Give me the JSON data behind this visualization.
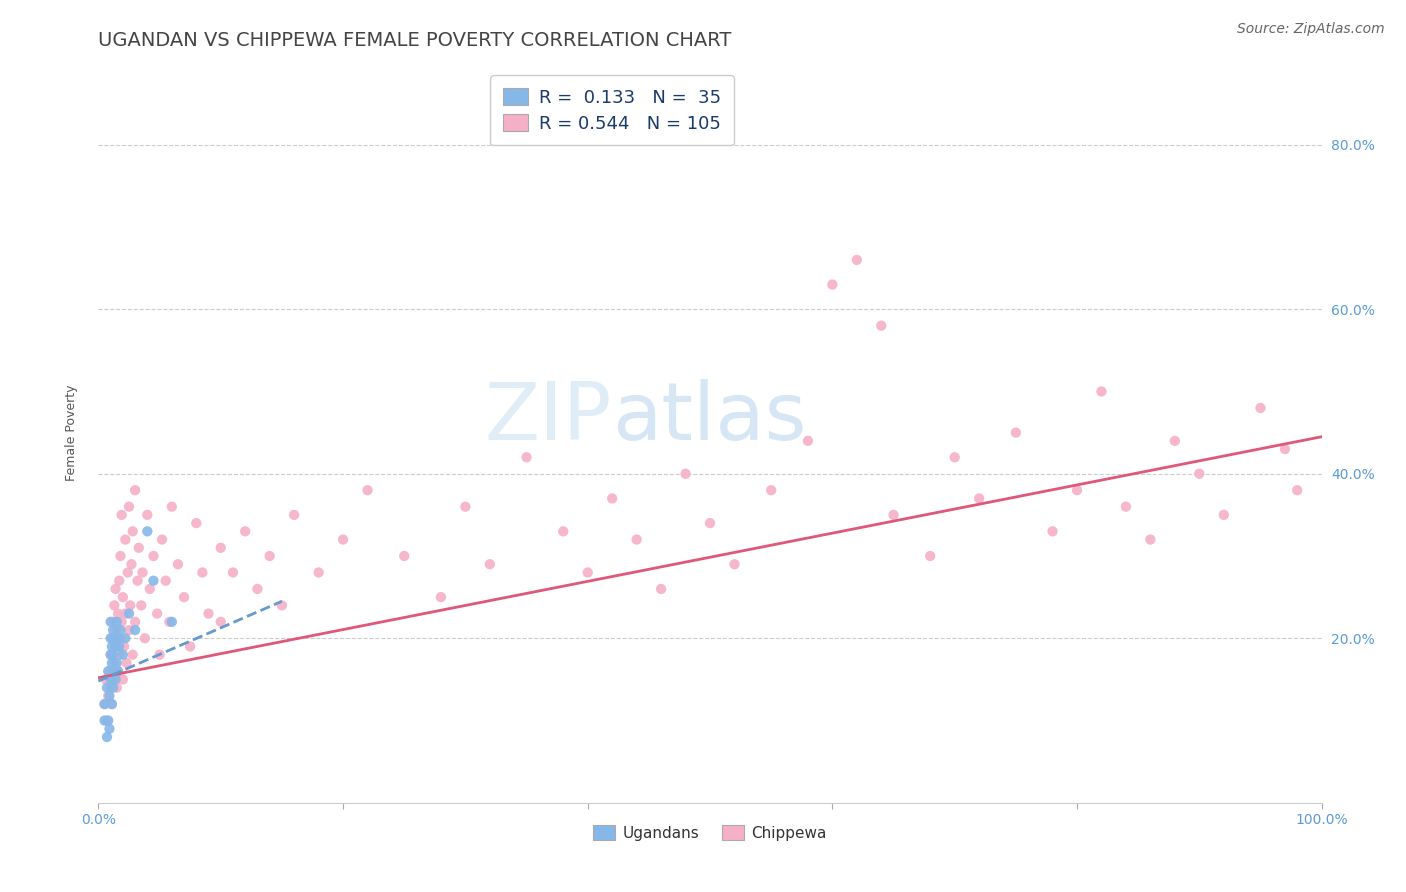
{
  "title": "UGANDAN VS CHIPPEWA FEMALE POVERTY CORRELATION CHART",
  "source": "Source: ZipAtlas.com",
  "ylabel": "Female Poverty",
  "xlim": [
    0,
    1
  ],
  "ylim": [
    0,
    0.9
  ],
  "xticks": [
    0.0,
    0.2,
    0.4,
    0.6,
    0.8,
    1.0
  ],
  "xtick_labels": [
    "0.0%",
    "",
    "",
    "",
    "",
    "100.0%"
  ],
  "ytick_vals_right": [
    0.2,
    0.4,
    0.6,
    0.8
  ],
  "ytick_labels_right": [
    "20.0%",
    "40.0%",
    "60.0%",
    "80.0%"
  ],
  "ugandan_color": "#85b8e8",
  "chippewa_color": "#f5b0c8",
  "ugandan_line_color": "#6699cc",
  "chippewa_line_color": "#e05878",
  "title_color": "#444444",
  "title_fontsize": 14,
  "source_fontsize": 10,
  "source_color": "#666666",
  "legend_label_ugandan": "Ugandans",
  "legend_label_chippewa": "Chippewa",
  "R_ugandan": 0.133,
  "N_ugandan": 35,
  "R_chippewa": 0.544,
  "N_chippewa": 105,
  "watermark_ZIP": "ZIP",
  "watermark_atlas": "atlas",
  "background_color": "#ffffff",
  "grid_color": "#cccccc",
  "ugandan_scatter": [
    [
      0.005,
      0.1
    ],
    [
      0.005,
      0.12
    ],
    [
      0.007,
      0.08
    ],
    [
      0.007,
      0.14
    ],
    [
      0.008,
      0.1
    ],
    [
      0.008,
      0.16
    ],
    [
      0.009,
      0.09
    ],
    [
      0.009,
      0.13
    ],
    [
      0.01,
      0.15
    ],
    [
      0.01,
      0.18
    ],
    [
      0.01,
      0.2
    ],
    [
      0.01,
      0.22
    ],
    [
      0.011,
      0.12
    ],
    [
      0.011,
      0.17
    ],
    [
      0.011,
      0.19
    ],
    [
      0.012,
      0.14
    ],
    [
      0.012,
      0.18
    ],
    [
      0.012,
      0.21
    ],
    [
      0.013,
      0.16
    ],
    [
      0.013,
      0.2
    ],
    [
      0.014,
      0.15
    ],
    [
      0.014,
      0.19
    ],
    [
      0.015,
      0.17
    ],
    [
      0.015,
      0.22
    ],
    [
      0.016,
      0.16
    ],
    [
      0.016,
      0.2
    ],
    [
      0.017,
      0.19
    ],
    [
      0.018,
      0.21
    ],
    [
      0.02,
      0.18
    ],
    [
      0.022,
      0.2
    ],
    [
      0.025,
      0.23
    ],
    [
      0.03,
      0.21
    ],
    [
      0.04,
      0.33
    ],
    [
      0.045,
      0.27
    ],
    [
      0.06,
      0.22
    ]
  ],
  "chippewa_scatter": [
    [
      0.005,
      0.12
    ],
    [
      0.006,
      0.15
    ],
    [
      0.007,
      0.1
    ],
    [
      0.008,
      0.13
    ],
    [
      0.009,
      0.16
    ],
    [
      0.01,
      0.14
    ],
    [
      0.01,
      0.18
    ],
    [
      0.011,
      0.12
    ],
    [
      0.011,
      0.2
    ],
    [
      0.012,
      0.15
    ],
    [
      0.012,
      0.22
    ],
    [
      0.013,
      0.17
    ],
    [
      0.013,
      0.24
    ],
    [
      0.014,
      0.19
    ],
    [
      0.014,
      0.26
    ],
    [
      0.015,
      0.14
    ],
    [
      0.015,
      0.21
    ],
    [
      0.016,
      0.16
    ],
    [
      0.016,
      0.23
    ],
    [
      0.017,
      0.18
    ],
    [
      0.017,
      0.27
    ],
    [
      0.018,
      0.2
    ],
    [
      0.018,
      0.3
    ],
    [
      0.019,
      0.22
    ],
    [
      0.019,
      0.35
    ],
    [
      0.02,
      0.15
    ],
    [
      0.02,
      0.25
    ],
    [
      0.021,
      0.19
    ],
    [
      0.022,
      0.23
    ],
    [
      0.022,
      0.32
    ],
    [
      0.023,
      0.17
    ],
    [
      0.024,
      0.28
    ],
    [
      0.025,
      0.21
    ],
    [
      0.025,
      0.36
    ],
    [
      0.026,
      0.24
    ],
    [
      0.027,
      0.29
    ],
    [
      0.028,
      0.18
    ],
    [
      0.028,
      0.33
    ],
    [
      0.03,
      0.22
    ],
    [
      0.03,
      0.38
    ],
    [
      0.032,
      0.27
    ],
    [
      0.033,
      0.31
    ],
    [
      0.035,
      0.24
    ],
    [
      0.036,
      0.28
    ],
    [
      0.038,
      0.2
    ],
    [
      0.04,
      0.35
    ],
    [
      0.042,
      0.26
    ],
    [
      0.045,
      0.3
    ],
    [
      0.048,
      0.23
    ],
    [
      0.05,
      0.18
    ],
    [
      0.052,
      0.32
    ],
    [
      0.055,
      0.27
    ],
    [
      0.058,
      0.22
    ],
    [
      0.06,
      0.36
    ],
    [
      0.065,
      0.29
    ],
    [
      0.07,
      0.25
    ],
    [
      0.075,
      0.19
    ],
    [
      0.08,
      0.34
    ],
    [
      0.085,
      0.28
    ],
    [
      0.09,
      0.23
    ],
    [
      0.1,
      0.31
    ],
    [
      0.1,
      0.22
    ],
    [
      0.11,
      0.28
    ],
    [
      0.12,
      0.33
    ],
    [
      0.13,
      0.26
    ],
    [
      0.14,
      0.3
    ],
    [
      0.15,
      0.24
    ],
    [
      0.16,
      0.35
    ],
    [
      0.18,
      0.28
    ],
    [
      0.2,
      0.32
    ],
    [
      0.22,
      0.38
    ],
    [
      0.25,
      0.3
    ],
    [
      0.28,
      0.25
    ],
    [
      0.3,
      0.36
    ],
    [
      0.32,
      0.29
    ],
    [
      0.35,
      0.42
    ],
    [
      0.38,
      0.33
    ],
    [
      0.4,
      0.28
    ],
    [
      0.42,
      0.37
    ],
    [
      0.44,
      0.32
    ],
    [
      0.46,
      0.26
    ],
    [
      0.48,
      0.4
    ],
    [
      0.5,
      0.34
    ],
    [
      0.52,
      0.29
    ],
    [
      0.55,
      0.38
    ],
    [
      0.58,
      0.44
    ],
    [
      0.6,
      0.63
    ],
    [
      0.62,
      0.66
    ],
    [
      0.64,
      0.58
    ],
    [
      0.65,
      0.35
    ],
    [
      0.68,
      0.3
    ],
    [
      0.7,
      0.42
    ],
    [
      0.72,
      0.37
    ],
    [
      0.75,
      0.45
    ],
    [
      0.78,
      0.33
    ],
    [
      0.8,
      0.38
    ],
    [
      0.82,
      0.5
    ],
    [
      0.84,
      0.36
    ],
    [
      0.86,
      0.32
    ],
    [
      0.88,
      0.44
    ],
    [
      0.9,
      0.4
    ],
    [
      0.92,
      0.35
    ],
    [
      0.95,
      0.48
    ],
    [
      0.97,
      0.43
    ],
    [
      0.98,
      0.38
    ]
  ],
  "chippewa_line": [
    [
      0.0,
      0.152
    ],
    [
      1.0,
      0.445
    ]
  ],
  "ugandan_line": [
    [
      0.0,
      0.148
    ],
    [
      0.15,
      0.245
    ]
  ]
}
